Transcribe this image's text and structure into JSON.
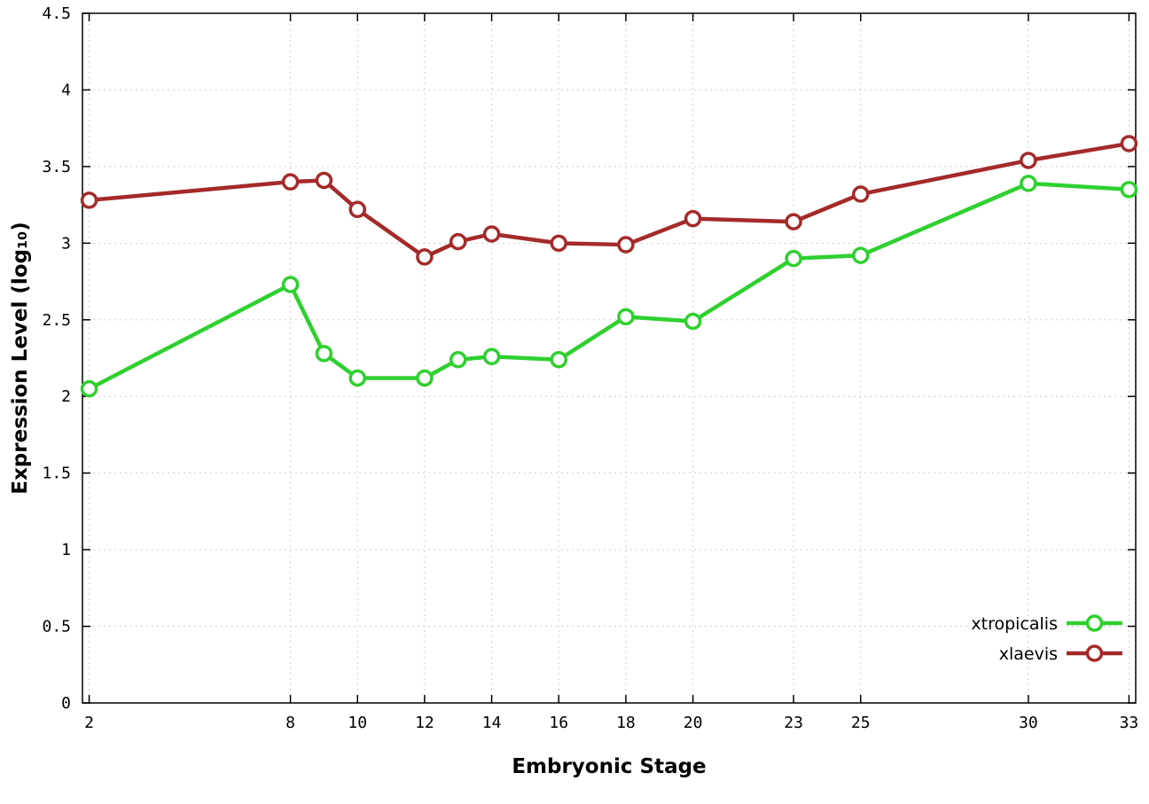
{
  "chart_data": {
    "type": "line",
    "title": "",
    "xlabel": "Embryonic Stage",
    "ylabel": "Expression Level (log₁₀)",
    "x": [
      2,
      8,
      9,
      10,
      12,
      13,
      14,
      16,
      18,
      20,
      23,
      25,
      30,
      33
    ],
    "series": [
      {
        "name": "xtropicalis",
        "color": "#2ed02e",
        "marker": "open-circle",
        "values": [
          2.05,
          2.73,
          2.28,
          2.12,
          2.12,
          2.24,
          2.26,
          2.24,
          2.52,
          2.49,
          2.9,
          2.92,
          3.39,
          3.35
        ]
      },
      {
        "name": "xlaevis",
        "color": "#a42a2a",
        "marker": "open-circle",
        "values": [
          3.28,
          3.4,
          3.41,
          3.22,
          2.91,
          3.01,
          3.06,
          3.0,
          2.99,
          3.16,
          3.14,
          3.32,
          3.54,
          3.65
        ]
      }
    ],
    "xticks": {
      "values": [
        2,
        8,
        10,
        12,
        14,
        16,
        18,
        20,
        23,
        25,
        30,
        33
      ],
      "labels": [
        "2",
        "8",
        "10",
        "12",
        "14",
        "16",
        "18",
        "20",
        "23",
        "25",
        "30",
        "33"
      ]
    },
    "yticks": {
      "values": [
        0,
        0.5,
        1,
        1.5,
        2,
        2.5,
        3,
        3.5,
        4,
        4.5
      ],
      "labels": [
        "0",
        "0.5",
        "1",
        "1.5",
        "2",
        "2.5",
        "3",
        "3.5",
        "4",
        "4.5"
      ]
    },
    "xlim": [
      1.8,
      33.2
    ],
    "ylim": [
      0,
      4.5
    ],
    "grid": true,
    "grid_color": "#cfcfcf",
    "axis_color": "#000000",
    "background": "#ffffff",
    "legend": {
      "position": "inside-bottom-right",
      "entries": [
        "xtropicalis",
        "xlaevis"
      ]
    }
  }
}
